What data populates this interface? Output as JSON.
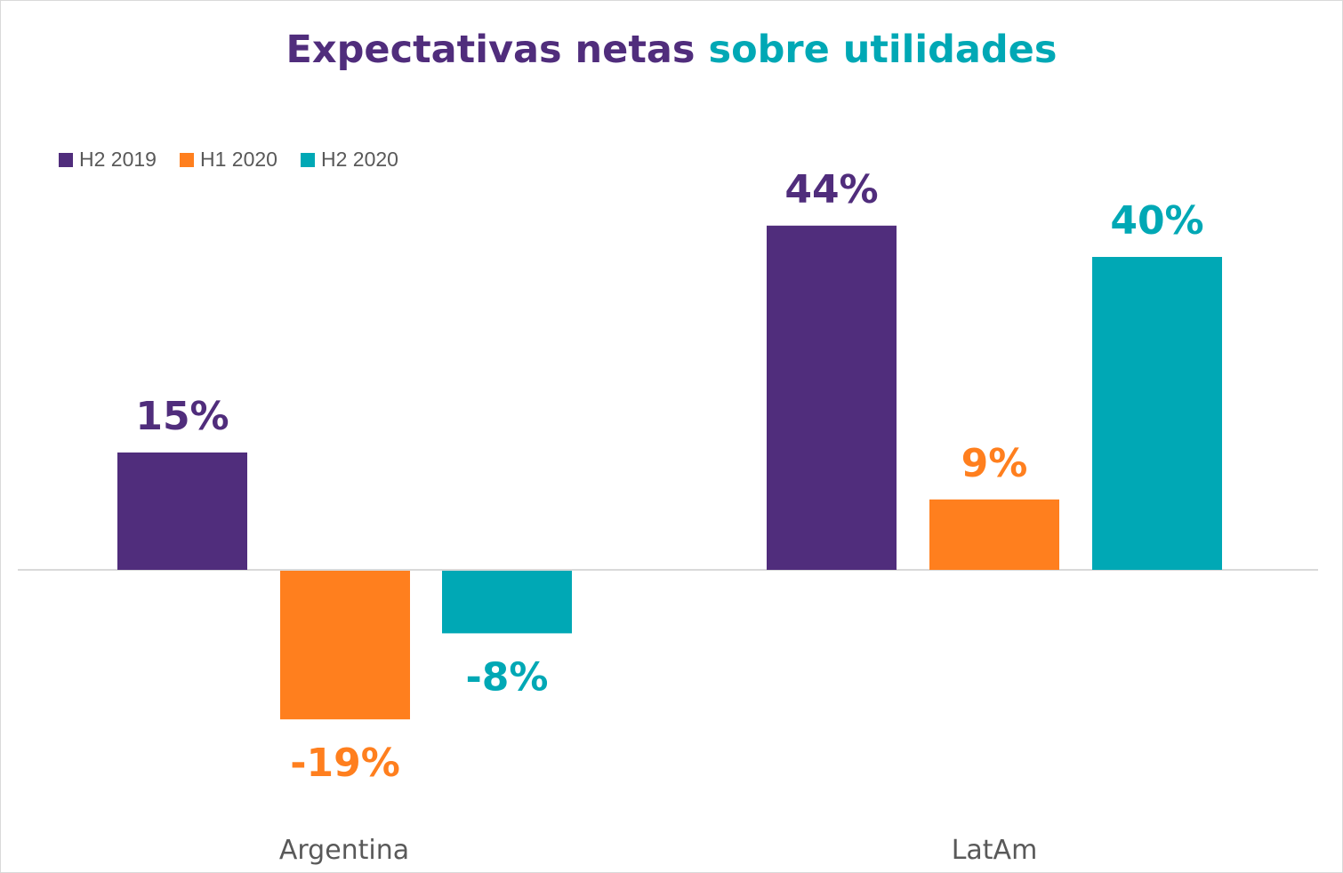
{
  "chart_data": {
    "type": "bar",
    "title_parts": [
      {
        "text": "Expectativas netas ",
        "color": "#502D7C"
      },
      {
        "text": "sobre utilidades",
        "color": "#00A8B5"
      }
    ],
    "categories": [
      "Argentina",
      "LatAm"
    ],
    "series": [
      {
        "name": "H2 2019",
        "color": "#502D7C",
        "values": [
          15,
          44
        ],
        "labels": [
          "15%",
          "44%"
        ]
      },
      {
        "name": "H1 2020",
        "color": "#FF7F1E",
        "values": [
          -19,
          9
        ],
        "labels": [
          "-19%",
          "9%"
        ]
      },
      {
        "name": "H2 2020",
        "color": "#00A8B5",
        "values": [
          -8,
          40
        ],
        "labels": [
          "-8%",
          "40%"
        ]
      }
    ],
    "unit": "%",
    "legend_position": "top-left",
    "grid": false,
    "ylim": [
      -30,
      65
    ]
  }
}
